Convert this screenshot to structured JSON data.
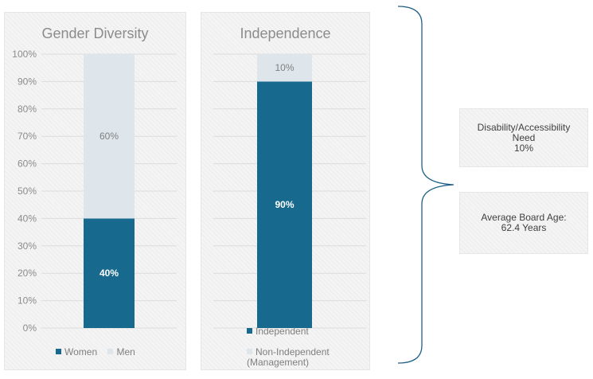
{
  "colors": {
    "dark": "#17698e",
    "light": "#dee5eb",
    "grid": "#dcdcdc",
    "axis_text": "#8c8c8c",
    "bracket": "#1f5f86"
  },
  "chart_data": [
    {
      "type": "bar",
      "stacked": true,
      "title": "Gender Diversity",
      "ylim": [
        0,
        100
      ],
      "yticks": [
        "0%",
        "10%",
        "20%",
        "30%",
        "40%",
        "50%",
        "60%",
        "70%",
        "80%",
        "90%",
        "100%"
      ],
      "series": [
        {
          "name": "Women",
          "values": [
            40
          ],
          "label": "40%"
        },
        {
          "name": "Men",
          "values": [
            60
          ],
          "label": "60%"
        }
      ],
      "legend": "bottom"
    },
    {
      "type": "bar",
      "stacked": true,
      "title": "Independence",
      "ylim": [
        0,
        100
      ],
      "series": [
        {
          "name": "Independent",
          "values": [
            90
          ],
          "label": "90%"
        },
        {
          "name": "Non-Independent (Management)",
          "name_lines": [
            "Non-Independent",
            "(Management)"
          ],
          "values": [
            10
          ],
          "label": "10%"
        }
      ],
      "legend": "bottom"
    }
  ],
  "info": {
    "disability_lines": [
      "Disability/Accessibility",
      "Need",
      "10%"
    ],
    "age_lines": [
      "Average Board Age:",
      "62.4 Years"
    ]
  }
}
